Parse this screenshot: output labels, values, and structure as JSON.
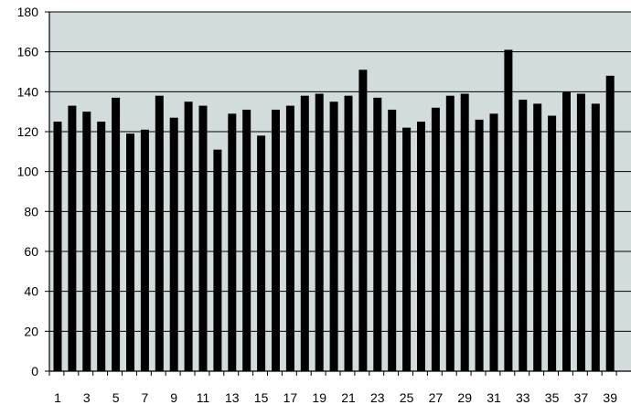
{
  "chart_data": {
    "type": "bar",
    "categories": [
      1,
      2,
      3,
      4,
      5,
      6,
      7,
      8,
      9,
      10,
      11,
      12,
      13,
      14,
      15,
      16,
      17,
      18,
      19,
      20,
      21,
      22,
      23,
      24,
      25,
      26,
      27,
      28,
      29,
      30,
      31,
      32,
      33,
      34,
      35,
      36,
      37,
      38,
      39
    ],
    "x_tick_labels": [
      "1",
      "3",
      "5",
      "7",
      "9",
      "11",
      "13",
      "15",
      "17",
      "19",
      "21",
      "23",
      "25",
      "27",
      "29",
      "31",
      "33",
      "35",
      "37",
      "39"
    ],
    "values": [
      125,
      133,
      130,
      125,
      137,
      119,
      121,
      138,
      127,
      135,
      133,
      111,
      129,
      131,
      118,
      131,
      133,
      138,
      139,
      135,
      138,
      151,
      137,
      131,
      122,
      125,
      132,
      138,
      139,
      126,
      129,
      161,
      136,
      134,
      128,
      140,
      139,
      134,
      148
    ],
    "y_ticks": [
      0,
      20,
      40,
      60,
      80,
      100,
      120,
      140,
      160,
      180
    ],
    "ylim": [
      0,
      180
    ],
    "grid": true,
    "legend": "none",
    "colors": {
      "bar": "#000000",
      "plot_background": "#d3dcdc",
      "gridline": "#000000",
      "axis": "#000000"
    }
  }
}
